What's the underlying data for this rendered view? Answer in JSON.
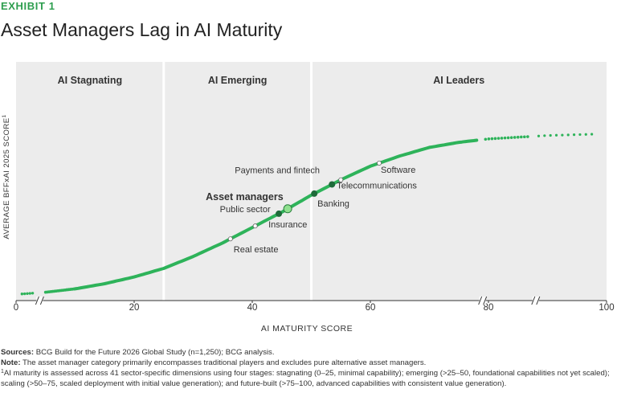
{
  "header": {
    "exhibit": "EXHIBIT 1",
    "title": "Asset Managers Lag in AI Maturity"
  },
  "chart_data": {
    "type": "line",
    "xlabel": "AI MATURITY SCORE",
    "ylabel": "AVERAGE BFFxAI 2025 SCORE",
    "ylabel_footnote": "1",
    "xlim": [
      0,
      100
    ],
    "x_ticks": [
      "0",
      "20",
      "40",
      "60",
      "80",
      "100"
    ],
    "axis_breaks_at_x": [
      4,
      79,
      88
    ],
    "grid": false,
    "zones": [
      {
        "label": "AI Stagnating",
        "range": [
          0,
          25
        ]
      },
      {
        "label": "AI Emerging",
        "range": [
          25,
          50
        ]
      },
      {
        "label": "AI Leaders",
        "range": [
          50,
          100
        ]
      }
    ],
    "series": [
      {
        "color": "#2eb35a",
        "x": [
          1,
          5,
          10,
          15,
          20,
          25,
          30,
          35,
          40,
          45,
          50,
          55,
          60,
          65,
          70,
          75,
          80,
          85,
          90,
          95,
          98
        ],
        "y": [
          2,
          3,
          5,
          8,
          12,
          17,
          24,
          32,
          41,
          50,
          60,
          69,
          77,
          83,
          88,
          91,
          93,
          94,
          95,
          95.5,
          95.8
        ]
      }
    ],
    "highlights": [
      {
        "label": "Asset managers",
        "x": 46,
        "emphasis": true
      },
      {
        "label": "Insurance",
        "x": 44.5
      },
      {
        "label": "Banking",
        "x": 50.5
      },
      {
        "label": "Telecommunications",
        "x": 53.5
      }
    ],
    "annotations": [
      {
        "label": "Real estate",
        "x": 36.3
      },
      {
        "label": "Public sector",
        "x": 40.5
      },
      {
        "label": "Payments and fintech",
        "x": 55
      },
      {
        "label": "Software",
        "x": 61.5
      }
    ]
  },
  "notes": {
    "sources_label": "Sources:",
    "sources_text": " BCG Build for the Future 2026 Global Study (n=1,250); BCG analysis.",
    "note_label": "Note:",
    "note_text": " The asset manager category primarily encompasses traditional players and excludes pure alternative asset managers.",
    "footnote_mark": "1",
    "footnote_text": "AI maturity is assessed across 41 sector-specific dimensions using four stages: stagnating (0–25, minimal capability); emerging (>25–50, foundational capabilities not yet scaled); scaling (>50–75, scaled deployment with initial value generation); and future-built (>75–100, advanced capabilities with consistent value generation)."
  }
}
